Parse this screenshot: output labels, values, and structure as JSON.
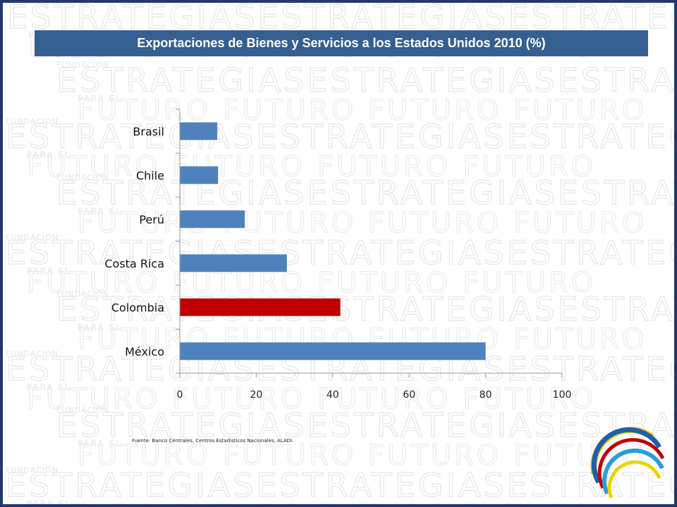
{
  "title": "Exportaciones de Bienes y Servicios a los Estados Unidos 2010 (%)",
  "source": "Fuente: Banco Centrales, Centros Estadisticos Nacionales, ALADI.",
  "watermark": {
    "line1": "FUNDACIÓN",
    "line2": "ESTRATEGIAS",
    "line3": "PARA EL",
    "line4": "FUTURO"
  },
  "colors": {
    "bar": "#4f81bd",
    "highlight": "#c00000",
    "title_bg": "#365f91",
    "frame": "#1f3a6b"
  },
  "chart_data": {
    "type": "bar",
    "orientation": "horizontal",
    "title": "Exportaciones de Bienes y Servicios a los Estados Unidos 2010 (%)",
    "categories": [
      "Brasil",
      "Chile",
      "Perú",
      "Costa Rica",
      "Colombia",
      "México"
    ],
    "values": [
      9.8,
      10,
      17,
      28,
      42,
      80
    ],
    "highlight": "Colombia",
    "xlabel": "",
    "ylabel": "",
    "xlim": [
      0,
      100
    ],
    "xticks": [
      0,
      20,
      40,
      60,
      80,
      100
    ],
    "grid": false,
    "legend": "none"
  }
}
